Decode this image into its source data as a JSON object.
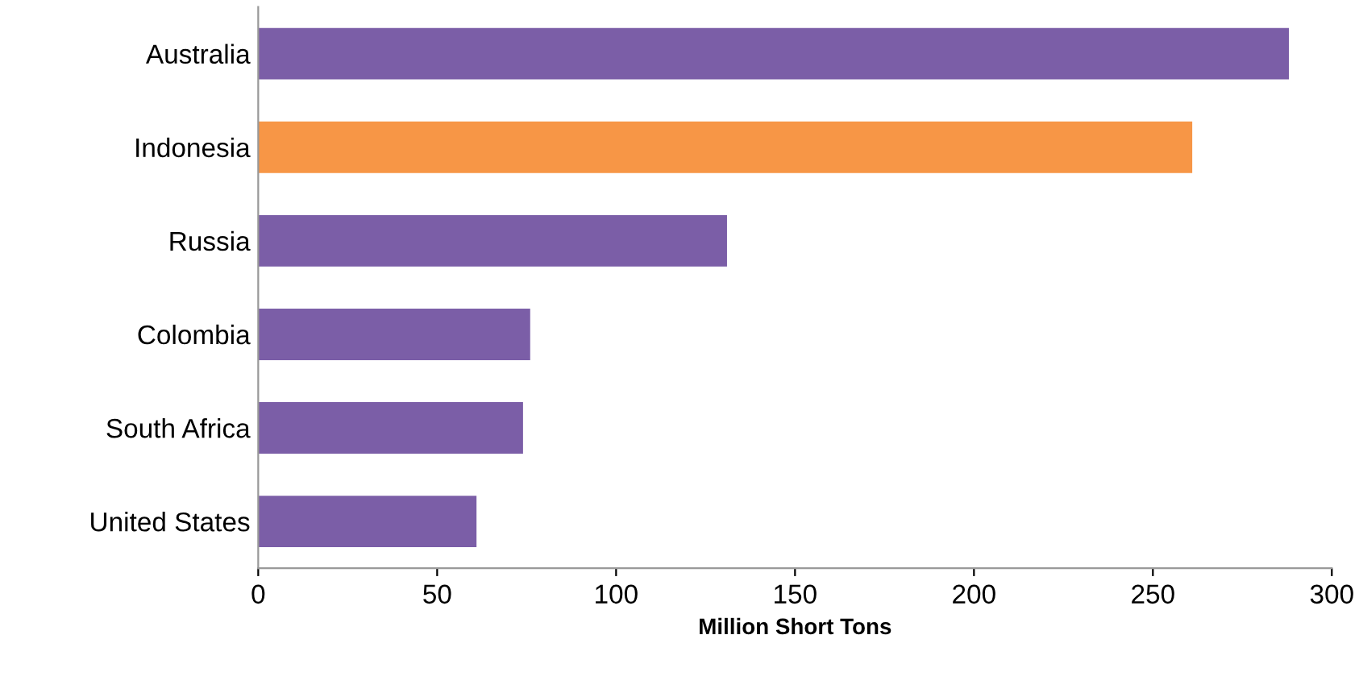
{
  "chart_data": {
    "type": "bar",
    "orientation": "horizontal",
    "xlabel": "Million Short Tons",
    "categories": [
      "Australia",
      "Indonesia",
      "Russia",
      "Colombia",
      "South Africa",
      "United States"
    ],
    "values": [
      288,
      261,
      131,
      76,
      74,
      61
    ],
    "colors": [
      "#7b5ea7",
      "#f79646",
      "#7b5ea7",
      "#7b5ea7",
      "#7b5ea7",
      "#7b5ea7"
    ],
    "xlim": [
      0,
      300
    ],
    "xticks": [
      0,
      50,
      100,
      150,
      200,
      250,
      300
    ],
    "grid": false,
    "legend": false
  }
}
